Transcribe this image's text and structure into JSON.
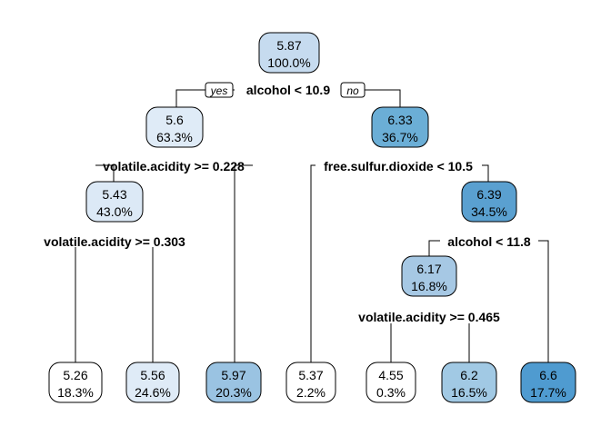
{
  "tree": {
    "yes_label": "yes",
    "no_label": "no",
    "palette": {
      "n1": "#c6dbef",
      "n2": "#dfebf7",
      "n3": "#6baed6",
      "n4": "#dce9f6",
      "n5": "#5aa0d0",
      "n6": "#a6c8e4",
      "l1": "#ffffff",
      "l2": "#dfebf7",
      "l3": "#9ac3e2",
      "l4": "#ffffff",
      "l5": "#ffffff",
      "l6": "#a1c9e4",
      "l7": "#4f9bd0"
    },
    "nodes": [
      {
        "id": "n1",
        "value": "5.87",
        "pct": "100.0%"
      },
      {
        "id": "n2",
        "value": "5.6",
        "pct": "63.3%"
      },
      {
        "id": "n3",
        "value": "6.33",
        "pct": "36.7%"
      },
      {
        "id": "n4",
        "value": "5.43",
        "pct": "43.0%"
      },
      {
        "id": "n5",
        "value": "6.39",
        "pct": "34.5%"
      },
      {
        "id": "n6",
        "value": "6.17",
        "pct": "16.8%"
      },
      {
        "id": "l1",
        "value": "5.26",
        "pct": "18.3%"
      },
      {
        "id": "l2",
        "value": "5.56",
        "pct": "24.6%"
      },
      {
        "id": "l3",
        "value": "5.97",
        "pct": "20.3%"
      },
      {
        "id": "l4",
        "value": "5.37",
        "pct": "2.2%"
      },
      {
        "id": "l5",
        "value": "4.55",
        "pct": "0.3%"
      },
      {
        "id": "l6",
        "value": "6.2",
        "pct": "16.5%"
      },
      {
        "id": "l7",
        "value": "6.6",
        "pct": "17.7%"
      }
    ],
    "splits": [
      {
        "id": "s1",
        "label": "alcohol < 10.9"
      },
      {
        "id": "s2",
        "label": "volatile.acidity >= 0.228"
      },
      {
        "id": "s3",
        "label": "free.sulfur.dioxide < 10.5"
      },
      {
        "id": "s4",
        "label": "volatile.acidity >= 0.303"
      },
      {
        "id": "s5",
        "label": "alcohol < 11.8"
      },
      {
        "id": "s6",
        "label": "volatile.acidity >= 0.465"
      }
    ]
  }
}
